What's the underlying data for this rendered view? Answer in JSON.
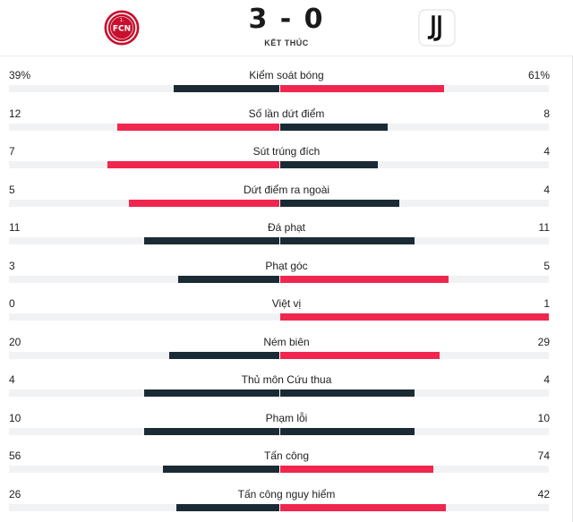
{
  "match": {
    "score": "3 - 0",
    "status": "KẾT THÚC",
    "home_logo_icon": "fcn-crest-icon",
    "away_logo_icon": "juventus-logo-icon"
  },
  "colors": {
    "dark": "#1b2b35",
    "red": "#f0264f",
    "track": "#f1f2f4"
  },
  "stats": [
    {
      "label": "Kiểm soát bóng",
      "home": "39%",
      "away": "61%",
      "home_value": 39,
      "away_value": 61,
      "home_fill": 0.39,
      "away_fill": 0.61,
      "leader": "away"
    },
    {
      "label": "Số lần dứt điểm",
      "home": "12",
      "away": "8",
      "home_value": 12,
      "away_value": 8,
      "home_fill": 0.6,
      "away_fill": 0.4,
      "leader": "home"
    },
    {
      "label": "Sút trúng đích",
      "home": "7",
      "away": "4",
      "home_value": 7,
      "away_value": 4,
      "home_fill": 0.636,
      "away_fill": 0.364,
      "leader": "home"
    },
    {
      "label": "Dứt điểm ra ngoài",
      "home": "5",
      "away": "4",
      "home_value": 5,
      "away_value": 4,
      "home_fill": 0.556,
      "away_fill": 0.444,
      "leader": "home"
    },
    {
      "label": "Đá phạt",
      "home": "11",
      "away": "11",
      "home_value": 11,
      "away_value": 11,
      "home_fill": 0.5,
      "away_fill": 0.5,
      "leader": "none"
    },
    {
      "label": "Phạt góc",
      "home": "3",
      "away": "5",
      "home_value": 3,
      "away_value": 5,
      "home_fill": 0.375,
      "away_fill": 0.625,
      "leader": "away"
    },
    {
      "label": "Việt vị",
      "home": "0",
      "away": "1",
      "home_value": 0,
      "away_value": 1,
      "home_fill": 0.0,
      "away_fill": 1.0,
      "leader": "away"
    },
    {
      "label": "Ném biên",
      "home": "20",
      "away": "29",
      "home_value": 20,
      "away_value": 29,
      "home_fill": 0.408,
      "away_fill": 0.592,
      "leader": "away"
    },
    {
      "label": "Thủ môn Cứu thua",
      "home": "4",
      "away": "4",
      "home_value": 4,
      "away_value": 4,
      "home_fill": 0.5,
      "away_fill": 0.5,
      "leader": "none"
    },
    {
      "label": "Phạm lỗi",
      "home": "10",
      "away": "10",
      "home_value": 10,
      "away_value": 10,
      "home_fill": 0.5,
      "away_fill": 0.5,
      "leader": "none"
    },
    {
      "label": "Tấn công",
      "home": "56",
      "away": "74",
      "home_value": 56,
      "away_value": 74,
      "home_fill": 0.431,
      "away_fill": 0.569,
      "leader": "away"
    },
    {
      "label": "Tấn công nguy hiểm",
      "home": "26",
      "away": "42",
      "home_value": 26,
      "away_value": 42,
      "home_fill": 0.382,
      "away_fill": 0.618,
      "leader": "away"
    }
  ]
}
